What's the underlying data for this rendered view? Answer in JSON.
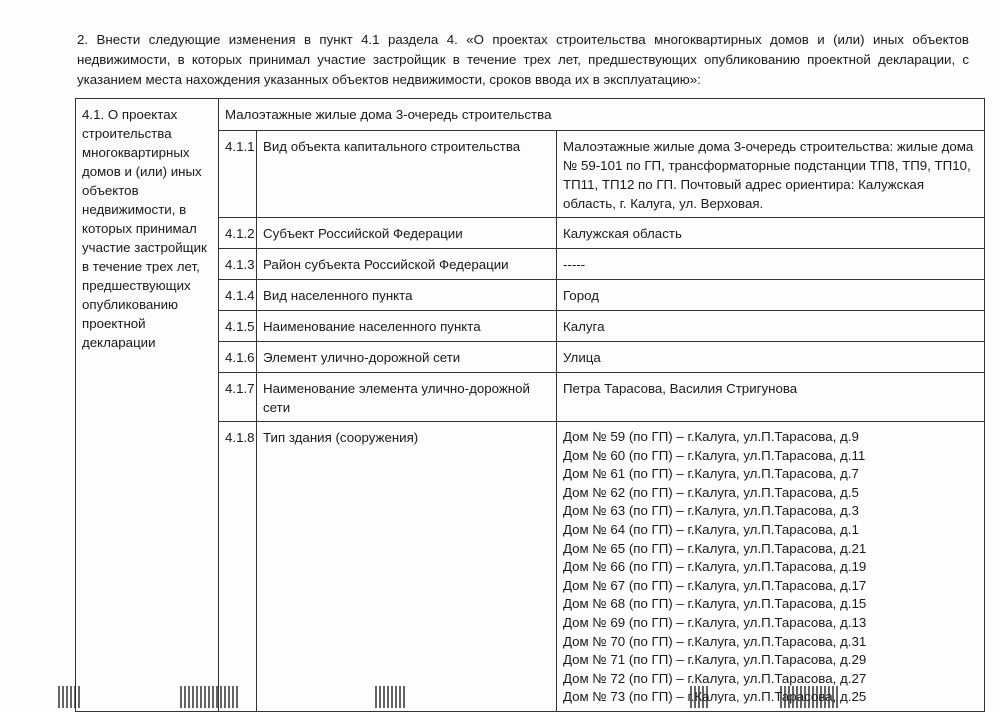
{
  "intro": "2. Внести следующие изменения в пункт 4.1 раздела 4. «О проектах строительства многоквартирных домов и (или) иных объектов недвижимости, в которых принимал участие застройщик в течение трех лет, предшествующих опубликованию проектной декларации, с указанием места нахождения указанных объектов недвижимости, сроков ввода их в эксплуатацию»:",
  "table": {
    "section_label": "4.1. О проектах строительства многоквартирных домов и (или) иных объектов недвижимости, в которых принимал участие застройщик в течение трех лет, предшествующих опубликованию проектной декларации",
    "header": "Малоэтажные жилые дома 3-очередь строительства",
    "rows": [
      {
        "num": "4.1.1",
        "label": "Вид объекта капитального строительства",
        "value": "Малоэтажные жилые дома 3-очередь строительства: жилые дома № 59-101 по ГП, трансформаторные подстанции ТП8, ТП9, ТП10, ТП11, ТП12 по ГП. Почтовый адрес ориентира: Калужская область, г. Калуга, ул. Верховая."
      },
      {
        "num": "4.1.2",
        "label": "Субъект Российской Федерации",
        "value": "Калужская область"
      },
      {
        "num": "4.1.3",
        "label": "Район субъекта Российской Федерации",
        "value": "-----"
      },
      {
        "num": "4.1.4",
        "label": "Вид населенного пункта",
        "value": "Город"
      },
      {
        "num": "4.1.5",
        "label": "Наименование населенного пункта",
        "value": "Калуга"
      },
      {
        "num": "4.1.6",
        "label": "Элемент улично-дорожной сети",
        "value": "Улица"
      },
      {
        "num": "4.1.7",
        "label": "Наименование элемента улично-дорожной сети",
        "value": "Петра Тарасова, Василия Стригунова"
      },
      {
        "num": "4.1.8",
        "label": "Тип здания (сооружения)",
        "values": [
          "Дом № 59 (по ГП) – г.Калуга, ул.П.Тарасова, д.9",
          "Дом № 60 (по ГП) – г.Калуга, ул.П.Тарасова, д.11",
          "Дом № 61 (по ГП) – г.Калуга, ул.П.Тарасова, д.7",
          "Дом № 62 (по ГП) – г.Калуга, ул.П.Тарасова, д.5",
          "Дом № 63 (по ГП) – г.Калуга, ул.П.Тарасова, д.3",
          "Дом № 64 (по ГП) – г.Калуга, ул.П.Тарасова, д.1",
          "Дом № 65 (по ГП) – г.Калуга, ул.П.Тарасова, д.21",
          "Дом № 66 (по ГП) – г.Калуга, ул.П.Тарасова, д.19",
          "Дом № 67 (по ГП) – г.Калуга, ул.П.Тарасова, д.17",
          "Дом № 68 (по ГП) – г.Калуга, ул.П.Тарасова, д.15",
          "Дом № 69 (по ГП) – г.Калуга, ул.П.Тарасова, д.13",
          "Дом № 70 (по ГП) – г.Калуга, ул.П.Тарасова, д.31",
          "Дом № 71 (по ГП) – г.Калуга, ул.П.Тарасова, д.29",
          "Дом № 72 (по ГП) – г.Калуга, ул.П.Тарасова, д.27",
          "Дом № 73 (по ГП) – г.Калуга, ул.П.Тарасова, д.25"
        ]
      }
    ]
  }
}
